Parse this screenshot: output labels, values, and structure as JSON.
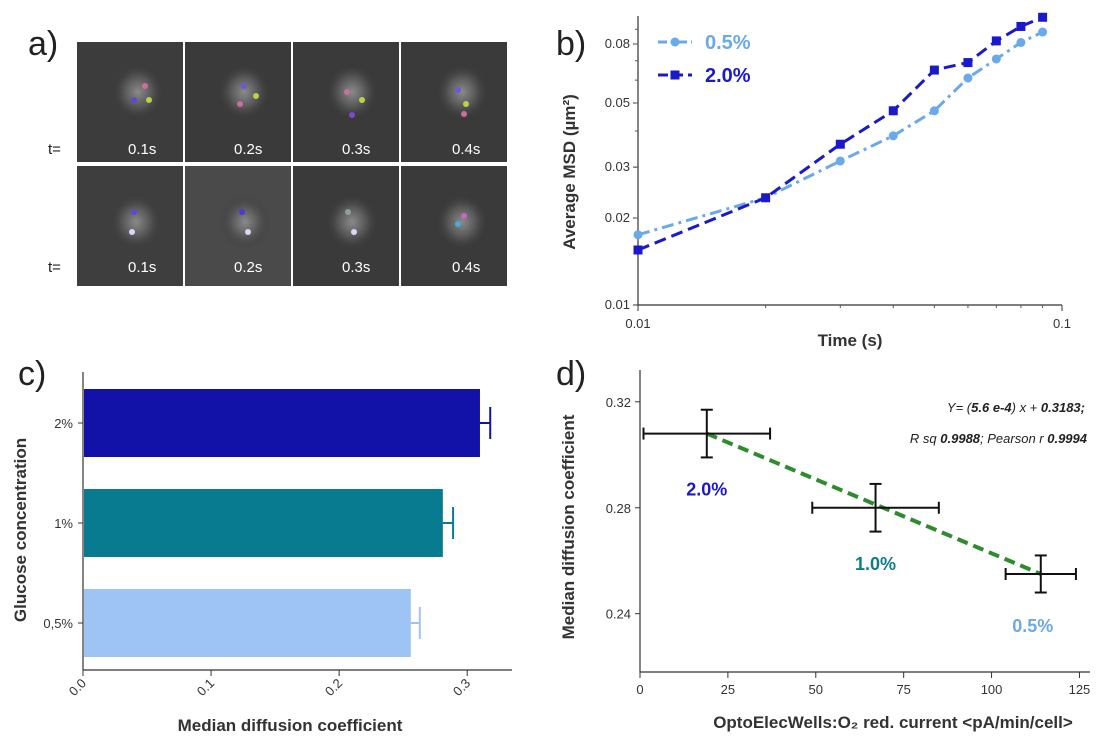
{
  "panels": {
    "a": {
      "label": "a)",
      "row_prefix": "t=",
      "rows": [
        {
          "frames": [
            "0.1s",
            "0.2s",
            "0.3s",
            "0.4s"
          ]
        },
        {
          "frames": [
            "0.1s",
            "0.2s",
            "0.3s",
            "0.4s"
          ]
        }
      ]
    },
    "b": {
      "label": "b)"
    },
    "c": {
      "label": "c)"
    },
    "d": {
      "label": "d)"
    }
  },
  "colors": {
    "light_blue": "#6aa9ea",
    "dark_blue": "#1a1acc",
    "bar_dark": "#1212a8",
    "bar_teal": "#097b90",
    "bar_light": "#9ec4f5",
    "teal_text": "#0f7b8e",
    "green_fit": "#2e8b2e"
  },
  "chart_data": [
    {
      "panel": "b",
      "type": "line",
      "xscale": "log",
      "yscale": "log",
      "xlabel": "Time (s)",
      "ylabel": "Average MSD (µm²)",
      "xlim": [
        0.01,
        0.1
      ],
      "ylim": [
        0.01,
        0.1
      ],
      "xticks": [
        {
          "v": 0.01,
          "label": "0.01"
        },
        {
          "v": 0.1,
          "label": "0.1"
        }
      ],
      "yticks": [
        {
          "v": 0.01,
          "label": "0.01"
        },
        {
          "v": 0.02,
          "label": "0.02"
        },
        {
          "v": 0.03,
          "label": "0.03"
        },
        {
          "v": 0.05,
          "label": "0.05"
        },
        {
          "v": 0.08,
          "label": "0.08"
        }
      ],
      "legend_position": "top-left",
      "series": [
        {
          "name": "0.5%",
          "color": "#6aa9ea",
          "marker": "circle",
          "x": [
            0.01,
            0.02,
            0.03,
            0.04,
            0.05,
            0.06,
            0.07,
            0.08,
            0.09
          ],
          "y": [
            0.0175,
            0.0235,
            0.0315,
            0.0385,
            0.047,
            0.061,
            0.071,
            0.081,
            0.088
          ]
        },
        {
          "name": "2.0%",
          "color": "#1a1acc",
          "marker": "square",
          "x": [
            0.01,
            0.02,
            0.03,
            0.04,
            0.05,
            0.06,
            0.07,
            0.08,
            0.09
          ],
          "y": [
            0.0155,
            0.0235,
            0.036,
            0.047,
            0.065,
            0.069,
            0.082,
            0.092,
            0.102
          ]
        }
      ]
    },
    {
      "panel": "c",
      "type": "bar",
      "orientation": "horizontal",
      "xlabel": "Median diffusion coefficient",
      "ylabel": "Glucose concentration",
      "xlim": [
        0,
        0.335
      ],
      "xticks": [
        {
          "v": 0,
          "label": "0.0"
        },
        {
          "v": 0.1,
          "label": "0.1"
        },
        {
          "v": 0.2,
          "label": "0.2"
        },
        {
          "v": 0.3,
          "label": "0.3"
        }
      ],
      "categories": [
        "2%",
        "1%",
        "0,5%"
      ],
      "values": [
        0.31,
        0.281,
        0.256
      ],
      "errors": [
        0.008,
        0.008,
        0.007
      ],
      "bar_colors": [
        "#1212a8",
        "#097b90",
        "#9ec4f5"
      ]
    },
    {
      "panel": "d",
      "type": "scatter",
      "xlabel": "OptoElecWells:O₂ red. current <pA/min/cell>",
      "ylabel": "Median diffusion coefficient",
      "xlim": [
        0,
        128
      ],
      "ylim": [
        0.218,
        0.332
      ],
      "xticks": [
        {
          "v": 0,
          "label": "0"
        },
        {
          "v": 25,
          "label": "25"
        },
        {
          "v": 50,
          "label": "50"
        },
        {
          "v": 75,
          "label": "75"
        },
        {
          "v": 100,
          "label": "100"
        },
        {
          "v": 125,
          "label": "125"
        }
      ],
      "yticks": [
        {
          "v": 0.24,
          "label": "0.24"
        },
        {
          "v": 0.28,
          "label": "0.28"
        },
        {
          "v": 0.32,
          "label": "0.32"
        }
      ],
      "points": [
        {
          "label": "2.0%",
          "x": 19,
          "y": 0.308,
          "xerr": 18,
          "yerr": 0.009,
          "color": "#1a1acc"
        },
        {
          "label": "1.0%",
          "x": 67,
          "y": 0.28,
          "xerr": 18,
          "yerr": 0.009,
          "color": "#0f7b8e"
        },
        {
          "label": "0.5%",
          "x": 114,
          "y": 0.255,
          "xerr": 10,
          "yerr": 0.007,
          "color": "#6aa9ea"
        }
      ],
      "fit": {
        "x": [
          19,
          114
        ],
        "y": [
          0.308,
          0.255
        ],
        "color": "#2e8b2e"
      },
      "equation": {
        "part1": "Y= (",
        "slope": "5.6 e-4",
        "part2": ") x + ",
        "intercept": "0.3183",
        "part3": ";",
        "rsq_label": "R sq ",
        "rsq": "0.9988",
        "sep": ";   Pearson r ",
        "pearson": "0.9994"
      }
    }
  ]
}
